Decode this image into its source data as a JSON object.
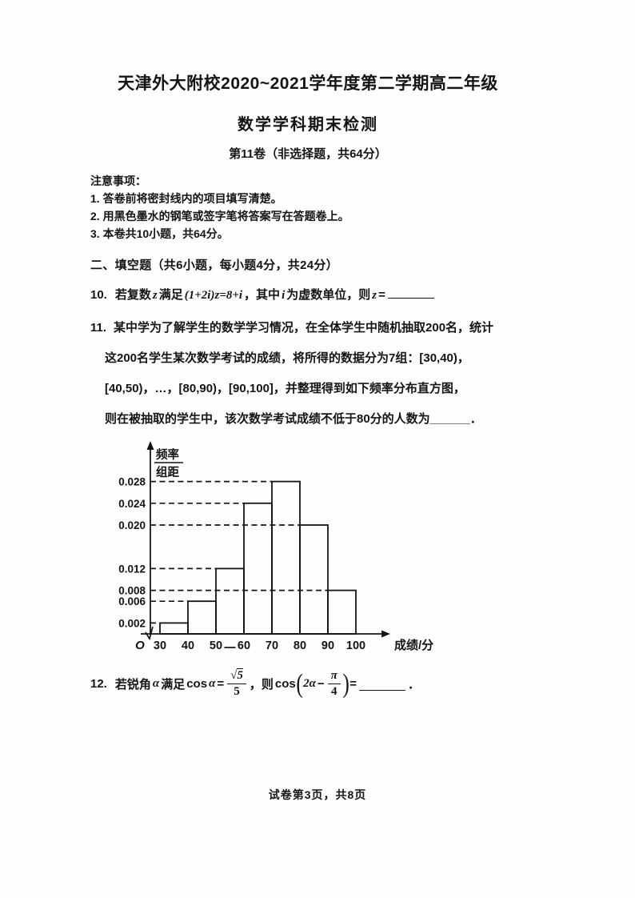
{
  "header": {
    "school_line": "天津外大附校2020~2021学年度第二学期高二年级",
    "exam_title": "数学学科期末检测",
    "paper_line": "第11卷（非选择题，共64分）"
  },
  "notes": {
    "heading": "注意事项：",
    "items": [
      "1. 答卷前将密封线内的项目填写清楚。",
      "2. 用黑色墨水的钢笔或签字笔将答案写在答题卷上。",
      "3. 本卷共10小题，共64分。"
    ]
  },
  "section": {
    "heading": "二、填空题（共6小题，每小题4分，共24分）"
  },
  "q10": {
    "number": "10.",
    "parts": [
      {
        "t": "t",
        "s": "若复数"
      },
      {
        "t": "m",
        "s": "z"
      },
      {
        "t": "t",
        "s": "满足"
      },
      {
        "t": "m",
        "s": "(1+2i)z=8+i"
      },
      {
        "t": "t",
        "s": "，其中"
      },
      {
        "t": "m",
        "s": "i"
      },
      {
        "t": "t",
        "s": "为虚数单位，则"
      },
      {
        "t": "m",
        "s": "z"
      },
      {
        "t": "t",
        "s": "="
      },
      {
        "t": "blank",
        "s": "________"
      }
    ]
  },
  "q11": {
    "number": "11.",
    "lines": [
      "某中学为了解学生的数学学习情况，在全体学生中随机抽取200名，统计",
      "这200名学生某次数学考试的成绩，将所得的数据分为7组：[30,40)，",
      "[40,50)，…，[80,90)，[90,100]，并整理得到如下频率分布直方图，",
      "则在被抽取的学生中，该次数学考试成绩不低于80分的人数为______．"
    ]
  },
  "chart_data": {
    "type": "bar",
    "title": "频率分布直方图",
    "ylabel_numerator": "频率",
    "ylabel_denominator": "组距",
    "xlabel": "成绩/分",
    "origin_label": "O",
    "categories": [
      "[30,40)",
      "[40,50)",
      "[50,60)",
      "[60,70)",
      "[70,80)",
      "[80,90)",
      "[90,100]"
    ],
    "values": [
      0.002,
      0.006,
      0.012,
      0.024,
      0.028,
      0.02,
      0.008
    ],
    "x_ticks": [
      30,
      40,
      50,
      60,
      70,
      80,
      90,
      100
    ],
    "y_ticks": [
      0.002,
      0.006,
      0.008,
      0.012,
      0.02,
      0.024,
      0.028
    ],
    "ylim": [
      0,
      0.03
    ],
    "grid": "dashed-guides-to-bar-tops",
    "bars_filled": false,
    "axis_break_at_origin": true,
    "stray_underscore_between_ticks": [
      50,
      60
    ]
  },
  "q12": {
    "number": "12.",
    "parts": [
      {
        "t": "t",
        "s": "若锐角"
      },
      {
        "t": "m",
        "s": "α"
      },
      {
        "t": "t",
        "s": "满足"
      },
      {
        "t": "t",
        "s": "cos"
      },
      {
        "t": "m",
        "s": "α"
      },
      {
        "t": "t",
        "s": "="
      },
      {
        "t": "frac",
        "num": "√5",
        "den": "5"
      },
      {
        "t": "t",
        "s": "，则"
      },
      {
        "t": "t",
        "s": "cos"
      },
      {
        "t": "paren",
        "s": "("
      },
      {
        "t": "m",
        "s": "2α"
      },
      {
        "t": "t",
        "s": "−"
      },
      {
        "t": "frac",
        "num": "π",
        "den": "4"
      },
      {
        "t": "paren",
        "s": ")"
      },
      {
        "t": "t",
        "s": "="
      },
      {
        "t": "blank",
        "s": "______"
      },
      {
        "t": "t",
        "s": "．"
      }
    ]
  },
  "footer": {
    "text": "试卷第3页，共8页"
  }
}
